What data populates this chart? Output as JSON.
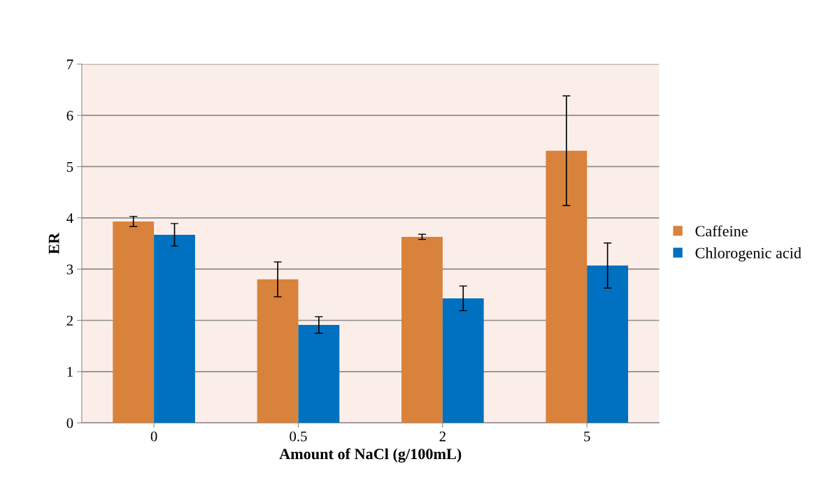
{
  "chart_data": {
    "type": "bar",
    "xlabel": "Amount of NaCl (g/100mL)",
    "ylabel": "ER",
    "categories": [
      "0",
      "0.5",
      "2",
      "5"
    ],
    "series": [
      {
        "name": "Caffeine",
        "color": "#d9823b",
        "values": [
          3.93,
          2.8,
          3.63,
          5.31
        ],
        "errors": [
          0.1,
          0.34,
          0.05,
          1.07
        ]
      },
      {
        "name": "Chlorogenic acid",
        "color": "#0070c0",
        "values": [
          3.67,
          1.91,
          2.43,
          3.07
        ],
        "errors": [
          0.22,
          0.16,
          0.24,
          0.44
        ]
      }
    ],
    "ylim": [
      0,
      7
    ],
    "yticks": [
      0,
      1,
      2,
      3,
      4,
      5,
      6,
      7
    ],
    "grid": "y",
    "legend": "right"
  }
}
